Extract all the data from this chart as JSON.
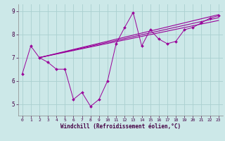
{
  "xlabel": "Windchill (Refroidissement éolien,°C)",
  "x_data": [
    0,
    1,
    2,
    3,
    4,
    5,
    6,
    7,
    8,
    9,
    10,
    11,
    12,
    13,
    14,
    15,
    16,
    17,
    18,
    19,
    20,
    21,
    22,
    23
  ],
  "y_main": [
    6.3,
    7.5,
    7.0,
    6.8,
    6.5,
    6.5,
    5.2,
    5.5,
    4.9,
    5.2,
    6.0,
    7.6,
    8.3,
    8.95,
    7.5,
    8.2,
    7.8,
    7.6,
    7.7,
    8.2,
    8.3,
    8.5,
    8.7,
    8.8
  ],
  "line1_start": 7.0,
  "line1_end": 8.85,
  "line2_start": 7.0,
  "line2_end": 8.72,
  "line3_start": 7.0,
  "line3_end": 8.6,
  "line_x_start": 2,
  "line_x_end": 23,
  "line_color": "#990099",
  "bg_color": "#cce8e8",
  "grid_color": "#aad0d0",
  "ylim": [
    4.5,
    9.3
  ],
  "xlim": [
    -0.5,
    23.5
  ],
  "yticks": [
    5,
    6,
    7,
    8,
    9
  ],
  "xticks": [
    0,
    1,
    2,
    3,
    4,
    5,
    6,
    7,
    8,
    9,
    10,
    11,
    12,
    13,
    14,
    15,
    16,
    17,
    18,
    19,
    20,
    21,
    22,
    23
  ]
}
